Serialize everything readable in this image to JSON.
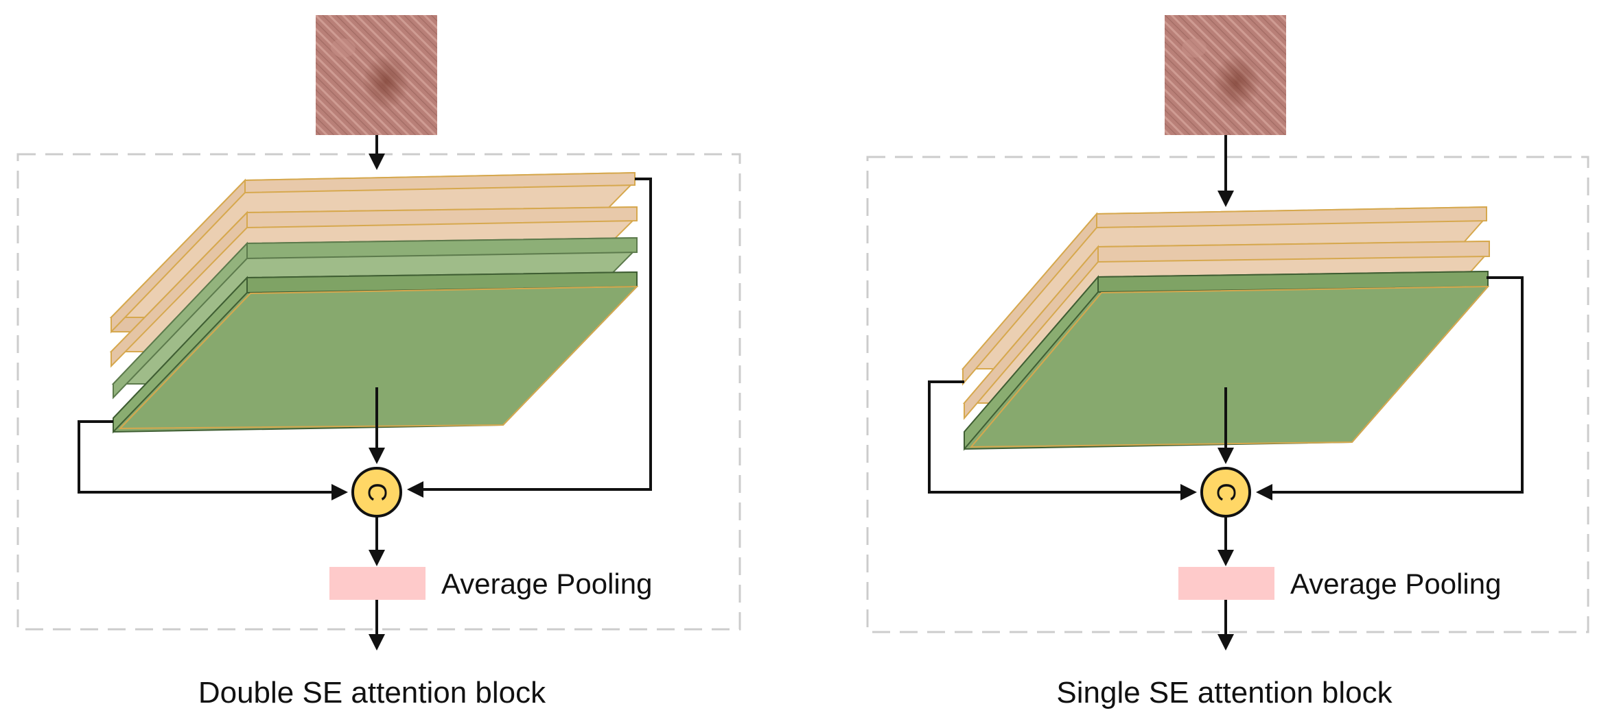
{
  "colors": {
    "feature_map_beige": "#EBCFB2",
    "feature_map_beige_edge": "#D6A84E",
    "feature_map_green": "#87A96E",
    "feature_map_green_edge": "#3F5E33",
    "concat_node": "#FFD766",
    "pooling_box": "#FECACA",
    "block_border": "#CCCCCC",
    "arrow": "#111111"
  },
  "blocks": [
    {
      "caption": "Double SE attention block",
      "pooling_label": "Average Pooling",
      "concat_symbol": "C",
      "input_image": "skin-lesion-image"
    },
    {
      "caption": "Single SE attention block",
      "pooling_label": "Average Pooling",
      "concat_symbol": "C",
      "input_image": "skin-lesion-image"
    }
  ]
}
